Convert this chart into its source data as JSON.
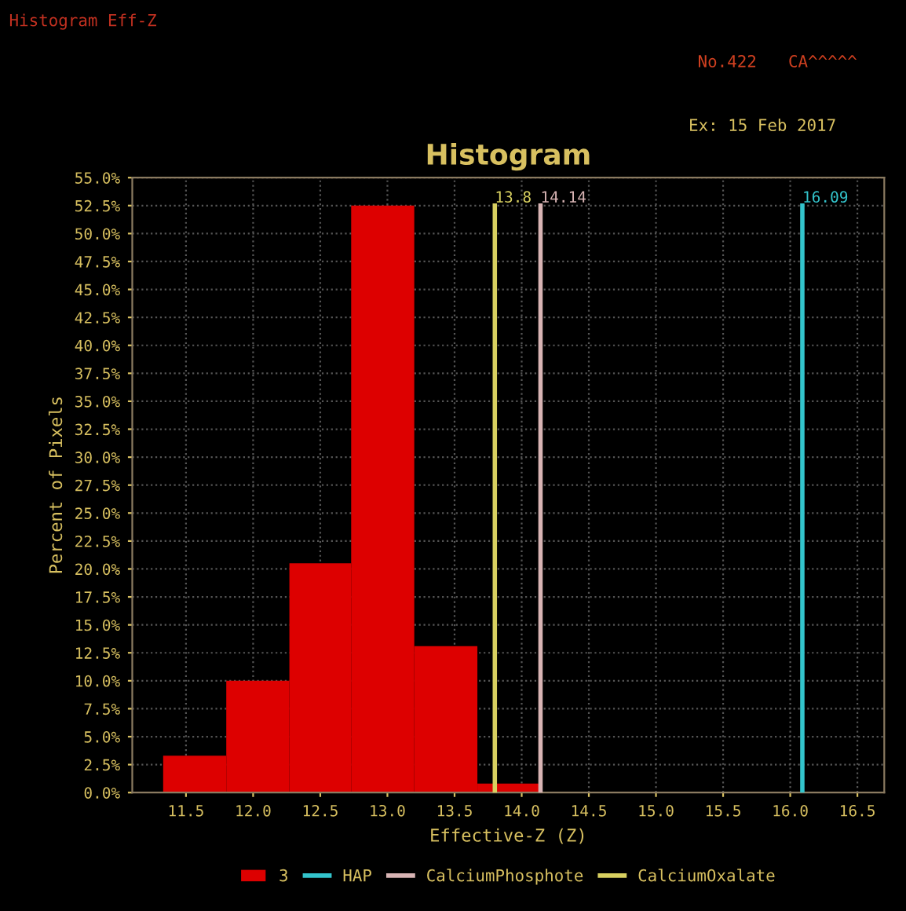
{
  "chart_data": {
    "type": "histogram",
    "title": "Histogram",
    "xlabel": "Effective-Z (Z)",
    "ylabel": "Percent of Pixels",
    "annotations": [
      "Histogram Eff-Z",
      "No.422",
      "CA^^^^^",
      "Ex: 15 Feb 2017",
      {
        "text": "13.8",
        "x": 13.8,
        "y": 52.5
      },
      {
        "text": "14.14",
        "x": 14.14,
        "y": 52.5
      },
      {
        "text": "16.09",
        "x": 16.09,
        "y": 52.5
      }
    ],
    "bins": [
      11.33,
      11.8,
      12.27,
      12.73,
      13.2,
      13.67,
      14.13
    ],
    "series": [
      {
        "name": "3",
        "color": "#dd0000",
        "values": [
          3.3,
          10.0,
          20.5,
          52.5,
          13.1,
          0.8
        ]
      },
      {
        "name": "HAP",
        "type": "line",
        "color": "#33c4cc",
        "x": [
          16.09,
          16.09
        ],
        "values": [
          0,
          52.5
        ]
      },
      {
        "name": "CalciumPhosphote",
        "type": "line",
        "color": "#d8b4b4",
        "x": [
          14.14,
          14.14
        ],
        "values": [
          0,
          52.5
        ]
      },
      {
        "name": "CalciumOxalate",
        "type": "line",
        "color": "#d8d060",
        "x": [
          13.8,
          13.8
        ],
        "values": [
          0,
          52.5
        ]
      }
    ],
    "xlim": [
      11.1,
      16.7
    ],
    "xticks": [
      {
        "value": 11.5,
        "label": "11.5"
      },
      {
        "value": 12.0,
        "label": "12.0"
      },
      {
        "value": 12.5,
        "label": "12.5"
      },
      {
        "value": 13.0,
        "label": "13.0"
      },
      {
        "value": 13.5,
        "label": "13.5"
      },
      {
        "value": 14.0,
        "label": "14.0"
      },
      {
        "value": 14.5,
        "label": "14.5"
      },
      {
        "value": 15.0,
        "label": "15.0"
      },
      {
        "value": 15.5,
        "label": "15.5"
      },
      {
        "value": 16.0,
        "label": "16.0"
      },
      {
        "value": 16.5,
        "label": "16.5"
      }
    ],
    "ylim": [
      0,
      55
    ],
    "yticks": [
      {
        "value": 0,
        "label": "0.0%"
      },
      {
        "value": 2.5,
        "label": "2.5%"
      },
      {
        "value": 5,
        "label": "5.0%"
      },
      {
        "value": 7.5,
        "label": "7.5%"
      },
      {
        "value": 10,
        "label": "10.0%"
      },
      {
        "value": 12.5,
        "label": "12.5%"
      },
      {
        "value": 15,
        "label": "15.0%"
      },
      {
        "value": 17.5,
        "label": "17.5%"
      },
      {
        "value": 20,
        "label": "20.0%"
      },
      {
        "value": 22.5,
        "label": "22.5%"
      },
      {
        "value": 25,
        "label": "25.0%"
      },
      {
        "value": 27.5,
        "label": "27.5%"
      },
      {
        "value": 30,
        "label": "30.0%"
      },
      {
        "value": 32.5,
        "label": "32.5%"
      },
      {
        "value": 35,
        "label": "35.0%"
      },
      {
        "value": 37.5,
        "label": "37.5%"
      },
      {
        "value": 40,
        "label": "40.0%"
      },
      {
        "value": 42.5,
        "label": "42.5%"
      },
      {
        "value": 45,
        "label": "45.0%"
      },
      {
        "value": 47.5,
        "label": "47.5%"
      },
      {
        "value": 50,
        "label": "50.0%"
      },
      {
        "value": 52.5,
        "label": "52.5%"
      },
      {
        "value": 55,
        "label": "55.0%"
      }
    ],
    "grid": true,
    "legend": "bottom"
  }
}
